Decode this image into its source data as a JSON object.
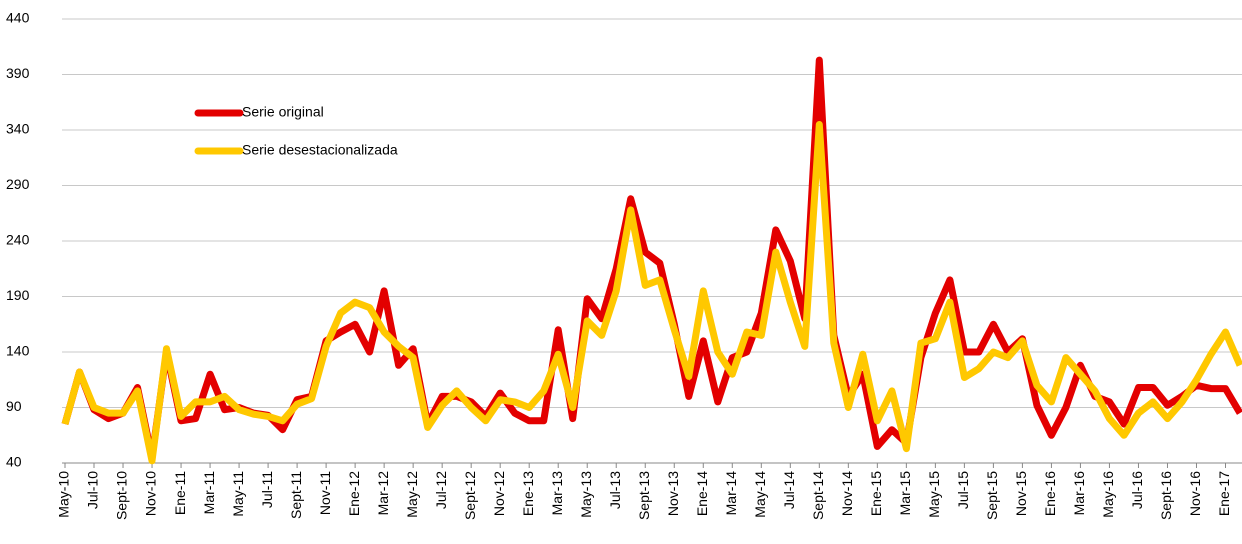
{
  "chart_data": {
    "type": "line",
    "categories": [
      "May-10",
      null,
      "Jul-10",
      null,
      "Sept-10",
      null,
      "Nov-10",
      null,
      "Ene-11",
      null,
      "Mar-11",
      null,
      "May-11",
      null,
      "Jul-11",
      null,
      "Sept-11",
      null,
      "Nov-11",
      null,
      "Ene-12",
      null,
      "Mar-12",
      null,
      "May-12",
      null,
      "Jul-12",
      null,
      "Sept-12",
      null,
      "Nov-12",
      null,
      "Ene-13",
      null,
      "Mar-13",
      null,
      "May-13",
      null,
      "Jul-13",
      null,
      "Sept-13",
      null,
      "Nov-13",
      null,
      "Ene-14",
      null,
      "Mar-14",
      null,
      "May-14",
      null,
      "Jul-14",
      null,
      "Sept-14",
      null,
      "Nov-14",
      null,
      "Ene-15",
      null,
      "Mar-15",
      null,
      "May-15",
      null,
      "Jul-15",
      null,
      "Sept-15",
      null,
      "Nov-15",
      null,
      "Ene-16",
      null,
      "Mar-16",
      null,
      "May-16",
      null,
      "Jul-16",
      null,
      "Sept-16",
      null,
      "Nov-16",
      null,
      "Ene-17",
      null
    ],
    "series": [
      {
        "name": "Serie original",
        "color": "#e30000",
        "values": [
          75,
          122,
          88,
          80,
          85,
          108,
          45,
          140,
          78,
          80,
          120,
          88,
          90,
          85,
          83,
          70,
          97,
          100,
          150,
          158,
          165,
          140,
          195,
          128,
          143,
          75,
          100,
          100,
          95,
          82,
          103,
          85,
          78,
          78,
          160,
          80,
          188,
          170,
          215,
          278,
          230,
          220,
          165,
          100,
          150,
          95,
          135,
          140,
          175,
          250,
          222,
          170,
          403,
          155,
          100,
          120,
          55,
          70,
          58,
          135,
          175,
          205,
          140,
          140,
          165,
          140,
          152,
          92,
          65,
          90,
          128,
          100,
          95,
          75,
          108,
          108,
          92,
          100,
          110,
          107,
          107,
          85
        ]
      },
      {
        "name": "Serie desestacionalizada",
        "color": "#ffc800",
        "values": [
          75,
          122,
          90,
          85,
          85,
          105,
          42,
          143,
          82,
          95,
          95,
          100,
          88,
          84,
          82,
          78,
          93,
          98,
          145,
          175,
          185,
          180,
          158,
          145,
          135,
          72,
          92,
          105,
          90,
          78,
          97,
          95,
          90,
          105,
          138,
          90,
          168,
          155,
          195,
          268,
          200,
          205,
          160,
          118,
          195,
          140,
          120,
          158,
          155,
          230,
          185,
          145,
          345,
          148,
          90,
          138,
          78,
          105,
          53,
          148,
          152,
          185,
          117,
          125,
          140,
          135,
          150,
          110,
          95,
          135,
          120,
          105,
          80,
          65,
          85,
          95,
          80,
          95,
          115,
          138,
          158,
          128
        ]
      }
    ],
    "ylim": [
      40,
      440
    ],
    "yticks": [
      40,
      90,
      140,
      190,
      240,
      290,
      340,
      390,
      440
    ],
    "grid": true,
    "legend": "upper-left"
  }
}
